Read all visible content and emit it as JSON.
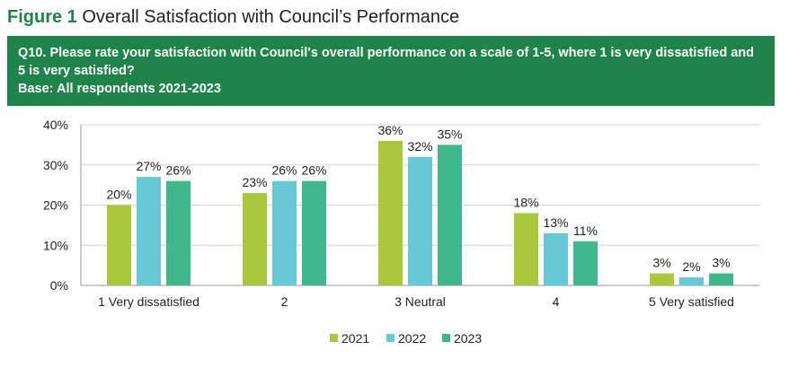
{
  "figure": {
    "label": "Figure 1",
    "title": "Overall Satisfaction with Council’s Performance"
  },
  "question": {
    "number": "Q10.",
    "text": " Please rate your satisfaction with Council's overall performance on a scale of 1-5, where 1 is very dissatisfied and 5 is very satisfied?",
    "base": "Base: All respondents 2021-2023"
  },
  "colors": {
    "header": "#1e8449",
    "2021": "#a9c83b",
    "2022": "#66c9d6",
    "2023": "#3fb98c",
    "grid": "#d4d4d4"
  },
  "chart_data": {
    "type": "bar",
    "categories": [
      "1 Very dissatisfied",
      "2",
      "3 Neutral",
      "4",
      "5 Very satisfied"
    ],
    "series": [
      {
        "name": "2021",
        "values": [
          20,
          23,
          36,
          18,
          3
        ],
        "labels": [
          "20%",
          "23%",
          "36%",
          "18%",
          "3%"
        ],
        "color": "#a9c83b"
      },
      {
        "name": "2022",
        "values": [
          27,
          26,
          32,
          13,
          2
        ],
        "labels": [
          "27%",
          "26%",
          "32%",
          "13%",
          "2%"
        ],
        "color": "#66c9d6"
      },
      {
        "name": "2023",
        "values": [
          26,
          26,
          35,
          11,
          3
        ],
        "labels": [
          "26%",
          "26%",
          "35%",
          "11%",
          "3%"
        ],
        "color": "#3fb98c"
      }
    ],
    "yticks": [
      "0%",
      "10%",
      "20%",
      "30%",
      "40%"
    ],
    "ylim": [
      0,
      40
    ],
    "grid": true,
    "legend": "bottom-center",
    "xlabel": "",
    "ylabel": ""
  }
}
